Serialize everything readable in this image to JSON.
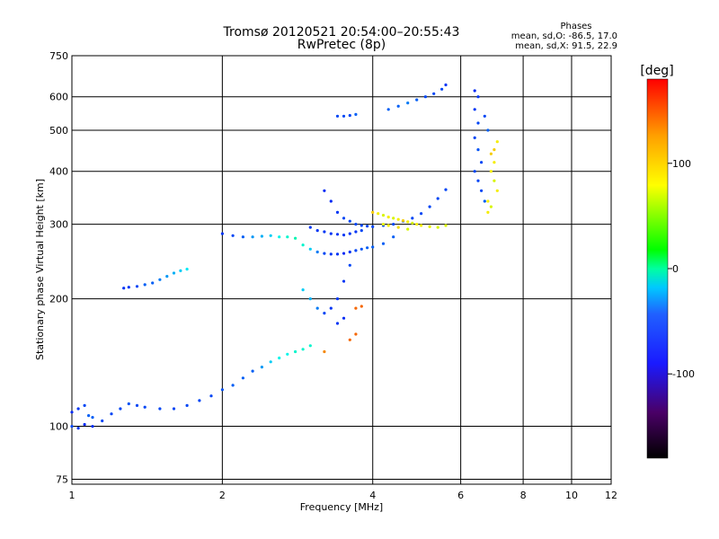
{
  "chart_data": {
    "type": "scatter",
    "title": "Tromsø 20120521 20:54:00–20:55:43",
    "subtitle": "RwPretec (8p)",
    "xlabel": "Frequency [MHz]",
    "ylabel": "Stationary phase Virtual Height [km]",
    "x_scale": "log",
    "y_scale": "log",
    "xlim": [
      1,
      12
    ],
    "ylim": [
      73,
      750
    ],
    "x_ticks": [
      1,
      2,
      4,
      6,
      8,
      10,
      12
    ],
    "y_ticks": [
      75,
      100,
      200,
      300,
      400,
      500,
      600,
      750
    ],
    "grid": true,
    "phases_legend": {
      "title": "Phases",
      "line1": "mean, sd,O: -86.5, 17.0",
      "line2": "mean, sd,X:  91.5, 22.9"
    },
    "colorbar": {
      "label": "[deg]",
      "range": [
        -180,
        180
      ],
      "ticks": [
        100,
        0,
        -100
      ],
      "colormap": "rainbow"
    },
    "series": [
      {
        "points": [
          [
            1.0,
            108,
            -120
          ],
          [
            1.03,
            110,
            -115
          ],
          [
            1.06,
            112,
            -110
          ],
          [
            1.08,
            106,
            -100
          ],
          [
            1.1,
            105,
            -100
          ],
          [
            1.0,
            100,
            -110
          ],
          [
            1.03,
            99,
            -115
          ],
          [
            1.06,
            101,
            -120
          ],
          [
            1.1,
            100,
            -118
          ],
          [
            1.15,
            103,
            -110
          ],
          [
            1.2,
            107,
            -110
          ],
          [
            1.25,
            110,
            -110
          ],
          [
            1.3,
            113,
            -105
          ],
          [
            1.35,
            112,
            -110
          ],
          [
            1.4,
            111,
            -110
          ],
          [
            1.5,
            110,
            -110
          ],
          [
            1.6,
            110,
            -110
          ],
          [
            1.7,
            112,
            -110
          ],
          [
            1.8,
            115,
            -110
          ],
          [
            1.9,
            118,
            -110
          ],
          [
            2.0,
            122,
            -105
          ],
          [
            2.1,
            125,
            -100
          ],
          [
            2.2,
            130,
            -100
          ],
          [
            2.3,
            135,
            -100
          ],
          [
            2.4,
            138,
            -80
          ],
          [
            2.5,
            142,
            -60
          ],
          [
            2.6,
            145,
            -40
          ],
          [
            2.7,
            148,
            -40
          ],
          [
            2.8,
            150,
            -30
          ],
          [
            2.9,
            152,
            -30
          ],
          [
            3.0,
            155,
            -30
          ]
        ]
      },
      {
        "points": [
          [
            1.27,
            212,
            -115
          ],
          [
            1.3,
            213,
            -115
          ],
          [
            1.35,
            214,
            -110
          ],
          [
            1.4,
            216,
            -100
          ],
          [
            1.45,
            218,
            -100
          ],
          [
            1.5,
            222,
            -90
          ],
          [
            1.55,
            226,
            -80
          ],
          [
            1.6,
            230,
            -70
          ],
          [
            1.65,
            233,
            -60
          ],
          [
            1.7,
            235,
            -50
          ]
        ]
      },
      {
        "points": [
          [
            2.0,
            285,
            -115
          ],
          [
            2.1,
            282,
            -110
          ],
          [
            2.2,
            280,
            -100
          ],
          [
            2.3,
            280,
            -80
          ],
          [
            2.4,
            281,
            -70
          ],
          [
            2.5,
            282,
            -60
          ],
          [
            2.6,
            280,
            -40
          ],
          [
            2.7,
            280,
            -30
          ],
          [
            2.8,
            278,
            -20
          ],
          [
            2.9,
            268,
            -30
          ],
          [
            3.0,
            262,
            -60
          ],
          [
            3.1,
            258,
            -90
          ],
          [
            3.2,
            256,
            -110
          ],
          [
            3.3,
            255,
            -115
          ],
          [
            3.4,
            255,
            -115
          ],
          [
            3.5,
            256,
            -120
          ],
          [
            3.6,
            258,
            -115
          ],
          [
            3.7,
            260,
            -110
          ],
          [
            3.8,
            262,
            -105
          ],
          [
            3.9,
            264,
            -100
          ],
          [
            4.0,
            265,
            -100
          ],
          [
            4.2,
            270,
            -100
          ],
          [
            4.4,
            280,
            -100
          ]
        ]
      },
      {
        "points": [
          [
            3.2,
            360,
            -120
          ],
          [
            3.3,
            340,
            -120
          ],
          [
            3.4,
            320,
            -115
          ],
          [
            3.5,
            310,
            -110
          ],
          [
            3.6,
            305,
            -110
          ],
          [
            3.7,
            300,
            -110
          ],
          [
            3.8,
            298,
            -110
          ],
          [
            3.9,
            297,
            -110
          ],
          [
            4.0,
            296,
            -110
          ],
          [
            4.2,
            298,
            -110
          ],
          [
            4.4,
            300,
            -110
          ],
          [
            4.6,
            305,
            -110
          ],
          [
            4.8,
            310,
            -110
          ],
          [
            5.0,
            318,
            -110
          ],
          [
            5.2,
            330,
            -110
          ],
          [
            5.4,
            345,
            -110
          ],
          [
            5.6,
            362,
            -110
          ]
        ]
      },
      {
        "points": [
          [
            3.0,
            295,
            -115
          ],
          [
            3.1,
            290,
            -115
          ],
          [
            3.2,
            288,
            -115
          ],
          [
            3.3,
            285,
            -115
          ],
          [
            3.4,
            284,
            -115
          ],
          [
            3.5,
            283,
            -115
          ],
          [
            3.6,
            285,
            -115
          ],
          [
            3.7,
            288,
            -115
          ],
          [
            3.8,
            290,
            -110
          ]
        ]
      },
      {
        "points": [
          [
            4.0,
            320,
            120
          ],
          [
            4.1,
            318,
            110
          ],
          [
            4.2,
            315,
            100
          ],
          [
            4.3,
            312,
            110
          ],
          [
            4.4,
            310,
            100
          ],
          [
            4.5,
            308,
            110
          ],
          [
            4.6,
            306,
            120
          ],
          [
            4.7,
            304,
            110
          ],
          [
            4.8,
            302,
            100
          ],
          [
            4.9,
            300,
            110
          ],
          [
            5.0,
            298,
            110
          ],
          [
            5.2,
            296,
            105
          ],
          [
            5.4,
            295,
            100
          ],
          [
            5.6,
            298,
            100
          ],
          [
            4.2,
            300,
            105
          ],
          [
            4.3,
            298,
            110
          ],
          [
            4.5,
            295,
            115
          ],
          [
            4.7,
            292,
            100
          ]
        ]
      },
      {
        "points": [
          [
            3.4,
            540,
            -110
          ],
          [
            3.5,
            540,
            -110
          ],
          [
            3.6,
            542,
            -110
          ],
          [
            3.7,
            545,
            -100
          ],
          [
            4.3,
            560,
            -100
          ],
          [
            4.5,
            570,
            -100
          ],
          [
            4.7,
            580,
            -90
          ],
          [
            4.9,
            590,
            -100
          ],
          [
            5.1,
            600,
            -110
          ],
          [
            5.3,
            610,
            -110
          ],
          [
            5.5,
            625,
            -110
          ],
          [
            5.6,
            640,
            -115
          ]
        ]
      },
      {
        "points": [
          [
            6.4,
            620,
            -120
          ],
          [
            6.5,
            600,
            -115
          ],
          [
            6.4,
            560,
            -115
          ],
          [
            6.5,
            520,
            -110
          ],
          [
            6.4,
            480,
            -110
          ],
          [
            6.5,
            450,
            -105
          ],
          [
            6.6,
            420,
            -110
          ],
          [
            6.4,
            400,
            -110
          ],
          [
            6.5,
            380,
            -110
          ],
          [
            6.6,
            360,
            -110
          ],
          [
            6.7,
            340,
            -100
          ],
          [
            6.8,
            500,
            -100
          ],
          [
            6.7,
            540,
            -110
          ],
          [
            6.9,
            440,
            120
          ],
          [
            7.0,
            420,
            110
          ],
          [
            6.9,
            400,
            110
          ],
          [
            7.0,
            380,
            100
          ],
          [
            7.1,
            360,
            110
          ],
          [
            6.8,
            340,
            110
          ],
          [
            7.0,
            450,
            120
          ],
          [
            7.1,
            470,
            110
          ],
          [
            6.9,
            330,
            100
          ],
          [
            6.8,
            320,
            110
          ]
        ]
      },
      {
        "points": [
          [
            2.9,
            210,
            -60
          ],
          [
            3.0,
            200,
            -70
          ],
          [
            3.1,
            190,
            -90
          ],
          [
            3.2,
            185,
            -110
          ],
          [
            3.3,
            190,
            -115
          ],
          [
            3.4,
            200,
            -115
          ],
          [
            3.5,
            220,
            -115
          ],
          [
            3.6,
            240,
            -110
          ],
          [
            3.5,
            180,
            -120
          ],
          [
            3.4,
            175,
            -115
          ],
          [
            3.7,
            190,
            150
          ],
          [
            3.8,
            192,
            150
          ],
          [
            3.6,
            160,
            150
          ],
          [
            3.7,
            165,
            150
          ],
          [
            3.2,
            150,
            140
          ]
        ]
      }
    ]
  }
}
